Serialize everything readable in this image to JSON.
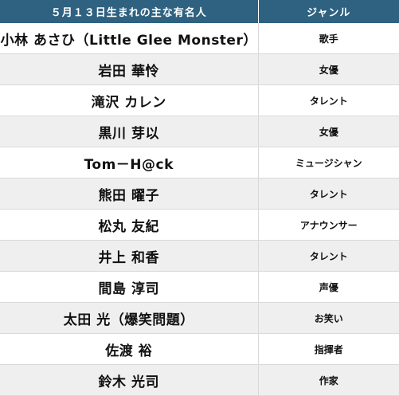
{
  "table": {
    "headers": {
      "name": "５月１３日生まれの主な有名人",
      "genre": "ジャンル"
    },
    "rows": [
      {
        "name": "小林 あさひ（Little Glee Monster）",
        "genre": "歌手"
      },
      {
        "name": "岩田 華怜",
        "genre": "女優"
      },
      {
        "name": "滝沢 カレン",
        "genre": "タレント"
      },
      {
        "name": "黒川 芽以",
        "genre": "女優"
      },
      {
        "name": "Tom－H@ck",
        "genre": "ミュージシャン"
      },
      {
        "name": "熊田 曜子",
        "genre": "タレント"
      },
      {
        "name": "松丸 友紀",
        "genre": "アナウンサー"
      },
      {
        "name": "井上 和香",
        "genre": "タレント"
      },
      {
        "name": "間島 淳司",
        "genre": "声優"
      },
      {
        "name": "太田 光（爆笑問題）",
        "genre": "お笑い"
      },
      {
        "name": "佐渡 裕",
        "genre": "指揮者"
      },
      {
        "name": "鈴木 光司",
        "genre": "作家"
      }
    ]
  },
  "colors": {
    "header_bg": "#2f6180",
    "row_alt_bg": "#efefef"
  }
}
